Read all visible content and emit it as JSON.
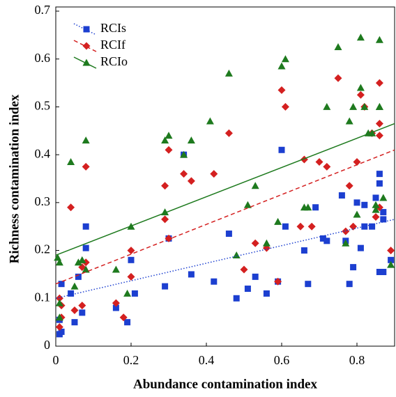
{
  "chart_data": {
    "type": "scatter",
    "xlabel": "Abundance contamination index",
    "ylabel": "Richness contamination index",
    "xlim": [
      0,
      0.9
    ],
    "ylim": [
      0,
      0.7
    ],
    "xticks": [
      0,
      0.2,
      0.4,
      0.6,
      0.8
    ],
    "yticks": [
      0,
      0.1,
      0.2,
      0.3,
      0.4,
      0.5,
      0.6,
      0.7
    ],
    "grid": false,
    "legend": "upper left",
    "series": [
      {
        "name": "RCIs",
        "color": "#1c3fd0",
        "marker": "square",
        "line_style": "dotted",
        "x": [
          0.01,
          0.015,
          0.01,
          0.015,
          0.04,
          0.05,
          0.06,
          0.07,
          0.08,
          0.08,
          0.16,
          0.19,
          0.2,
          0.21,
          0.29,
          0.3,
          0.34,
          0.36,
          0.42,
          0.46,
          0.48,
          0.51,
          0.53,
          0.56,
          0.59,
          0.6,
          0.61,
          0.66,
          0.67,
          0.69,
          0.71,
          0.72,
          0.76,
          0.77,
          0.78,
          0.79,
          0.8,
          0.81,
          0.82,
          0.82,
          0.84,
          0.85,
          0.86,
          0.86,
          0.86,
          0.87,
          0.87,
          0.87,
          0.89
        ],
        "values": [
          0.025,
          0.03,
          0.055,
          0.13,
          0.11,
          0.05,
          0.145,
          0.07,
          0.25,
          0.205,
          0.08,
          0.05,
          0.18,
          0.11,
          0.125,
          0.225,
          0.4,
          0.15,
          0.135,
          0.235,
          0.1,
          0.12,
          0.145,
          0.11,
          0.135,
          0.41,
          0.25,
          0.2,
          0.13,
          0.29,
          0.225,
          0.22,
          0.315,
          0.22,
          0.13,
          0.165,
          0.3,
          0.205,
          0.25,
          0.295,
          0.25,
          0.31,
          0.155,
          0.36,
          0.34,
          0.155,
          0.265,
          0.28,
          0.18
        ],
        "trend": {
          "x": [
            0,
            0.9
          ],
          "values": [
            0.1,
            0.265
          ]
        }
      },
      {
        "name": "RCIf",
        "color": "#d42020",
        "marker": "diamond",
        "line_style": "dashed",
        "x": [
          0.01,
          0.01,
          0.015,
          0.015,
          0.04,
          0.05,
          0.07,
          0.07,
          0.08,
          0.08,
          0.16,
          0.18,
          0.2,
          0.2,
          0.29,
          0.29,
          0.3,
          0.3,
          0.34,
          0.36,
          0.42,
          0.46,
          0.5,
          0.53,
          0.56,
          0.59,
          0.6,
          0.61,
          0.65,
          0.66,
          0.68,
          0.7,
          0.72,
          0.75,
          0.77,
          0.78,
          0.79,
          0.8,
          0.81,
          0.82,
          0.84,
          0.85,
          0.86,
          0.86,
          0.86,
          0.86,
          0.89
        ],
        "values": [
          0.04,
          0.1,
          0.06,
          0.085,
          0.29,
          0.075,
          0.085,
          0.165,
          0.375,
          0.175,
          0.09,
          0.06,
          0.2,
          0.145,
          0.335,
          0.265,
          0.41,
          0.225,
          0.36,
          0.345,
          0.36,
          0.445,
          0.16,
          0.215,
          0.205,
          0.135,
          0.535,
          0.5,
          0.25,
          0.39,
          0.25,
          0.385,
          0.375,
          0.56,
          0.24,
          0.335,
          0.25,
          0.385,
          0.525,
          0.5,
          0.445,
          0.27,
          0.55,
          0.465,
          0.44,
          0.29,
          0.2
        ],
        "trend": {
          "x": [
            0,
            0.9
          ],
          "values": [
            0.13,
            0.41
          ]
        }
      },
      {
        "name": "RCIo",
        "color": "#1e7a1e",
        "marker": "triangle",
        "line_style": "solid",
        "x": [
          0.005,
          0.01,
          0.01,
          0.01,
          0.04,
          0.05,
          0.06,
          0.07,
          0.08,
          0.08,
          0.16,
          0.19,
          0.2,
          0.29,
          0.29,
          0.3,
          0.34,
          0.36,
          0.41,
          0.46,
          0.48,
          0.51,
          0.53,
          0.56,
          0.59,
          0.6,
          0.61,
          0.66,
          0.67,
          0.72,
          0.75,
          0.77,
          0.78,
          0.79,
          0.8,
          0.81,
          0.81,
          0.82,
          0.83,
          0.84,
          0.85,
          0.85,
          0.86,
          0.86,
          0.86,
          0.87,
          0.89
        ],
        "values": [
          0.185,
          0.175,
          0.09,
          0.06,
          0.385,
          0.125,
          0.175,
          0.18,
          0.43,
          0.16,
          0.16,
          0.11,
          0.25,
          0.43,
          0.28,
          0.44,
          0.4,
          0.43,
          0.47,
          0.57,
          0.19,
          0.295,
          0.335,
          0.215,
          0.26,
          0.585,
          0.6,
          0.29,
          0.29,
          0.5,
          0.625,
          0.215,
          0.47,
          0.5,
          0.275,
          0.54,
          0.645,
          0.5,
          0.445,
          0.445,
          0.295,
          0.285,
          0.5,
          0.64,
          0.5,
          0.31,
          0.17
        ],
        "trend": {
          "x": [
            0,
            0.9
          ],
          "values": [
            0.19,
            0.465
          ]
        }
      }
    ]
  }
}
